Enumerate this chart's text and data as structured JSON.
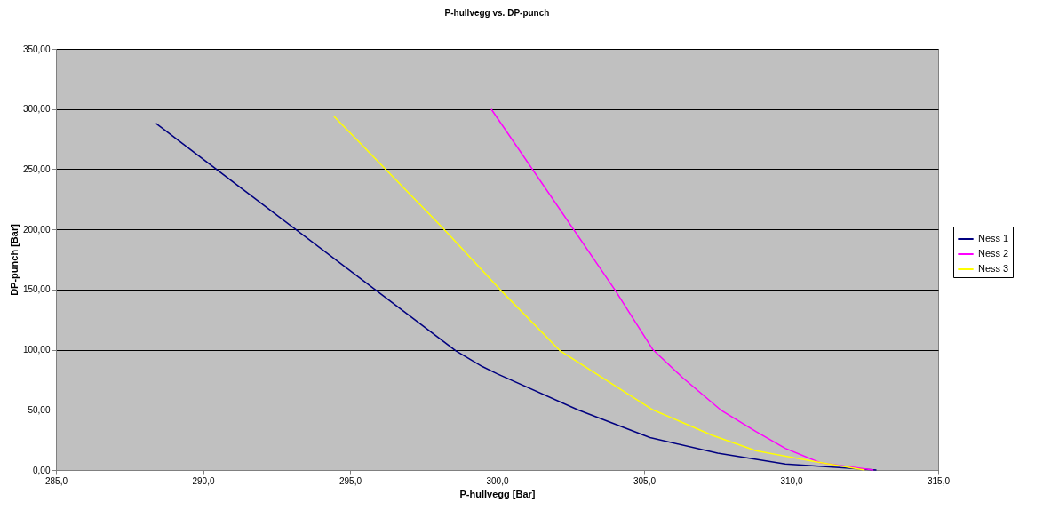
{
  "chart_data": {
    "type": "line",
    "title": "P-hullvegg vs. DP-punch",
    "xlabel": "P-hullvegg [Bar]",
    "ylabel": "DP-punch [Bar]",
    "xlim": [
      285,
      315
    ],
    "ylim": [
      0,
      350
    ],
    "xticks": [
      {
        "value": 285,
        "label": "285,0"
      },
      {
        "value": 290,
        "label": "290,0"
      },
      {
        "value": 295,
        "label": "295,0"
      },
      {
        "value": 300,
        "label": "300,0"
      },
      {
        "value": 305,
        "label": "305,0"
      },
      {
        "value": 310,
        "label": "310,0"
      },
      {
        "value": 315,
        "label": "315,0"
      }
    ],
    "yticks": [
      {
        "value": 0,
        "label": "0,00"
      },
      {
        "value": 50,
        "label": "50,00"
      },
      {
        "value": 100,
        "label": "100,00"
      },
      {
        "value": 150,
        "label": "150,00"
      },
      {
        "value": 200,
        "label": "200,00"
      },
      {
        "value": 250,
        "label": "250,00"
      },
      {
        "value": 300,
        "label": "300,00"
      },
      {
        "value": 350,
        "label": "350,00"
      }
    ],
    "grid": "y",
    "legend": "right",
    "marker": "none",
    "line_style": "solid",
    "series": [
      {
        "name": "Ness 1",
        "color": "#000080",
        "x": [
          288.4,
          298.6,
          299.5,
          300.0,
          302.75,
          305.2,
          307.5,
          309.8,
          312.9
        ],
        "values": [
          288,
          99,
          86,
          80,
          50,
          27,
          14,
          5,
          0
        ]
      },
      {
        "name": "Ness 2",
        "color": "#ff00ff",
        "x": [
          299.8,
          304.0,
          305.3,
          306.3,
          307.6,
          308.8,
          309.8,
          311.0,
          312.8
        ],
        "values": [
          300,
          150,
          100,
          77,
          50,
          32,
          18,
          6,
          0
        ]
      },
      {
        "name": "Ness 3",
        "color": "#ffff00",
        "x": [
          294.45,
          298.2,
          300.1,
          302.15,
          305.3,
          307.3,
          308.8,
          310.8,
          312.5
        ],
        "values": [
          294,
          200,
          150,
          99,
          50,
          29,
          16,
          7,
          0
        ]
      }
    ]
  }
}
